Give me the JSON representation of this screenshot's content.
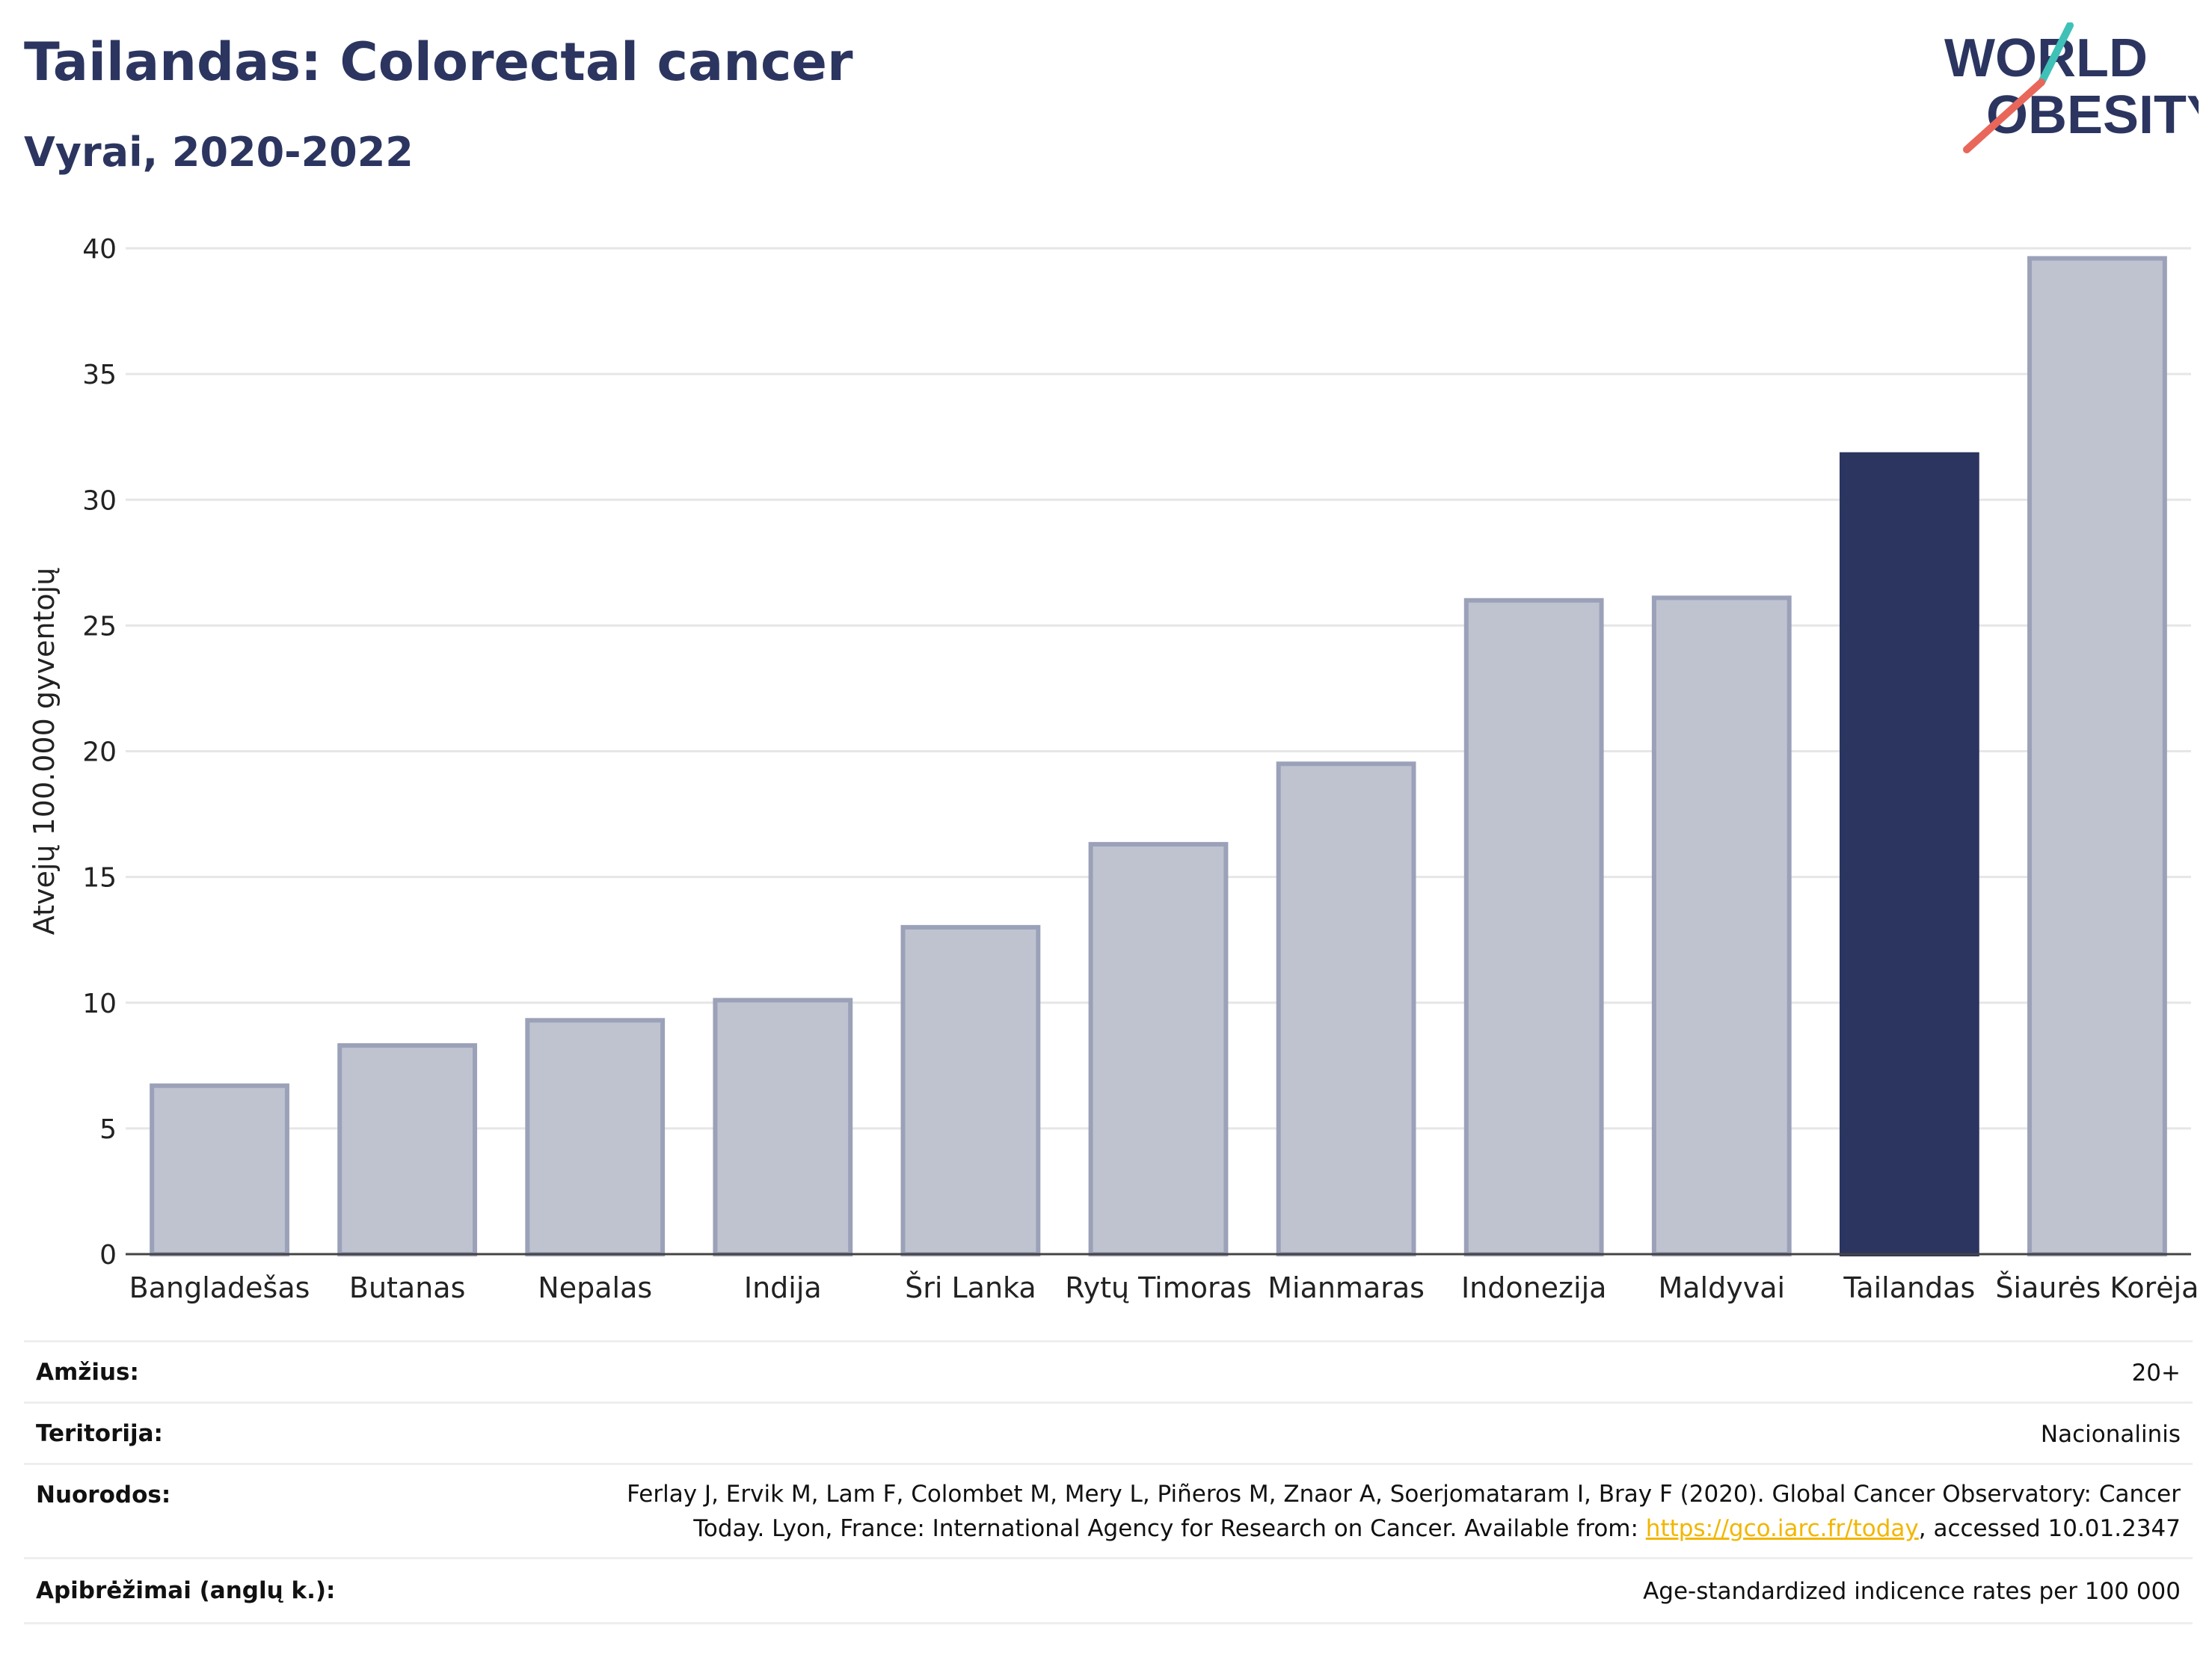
{
  "header": {
    "title": "Tailandas: Colorectal cancer",
    "subtitle": "Vyrai, 2020-2022"
  },
  "logo": {
    "line1": "WORLD",
    "line2": "OBESITY",
    "colors": {
      "text": "#2b3560",
      "teal": "#3fc1b7",
      "coral": "#e8675a"
    }
  },
  "chart_data": {
    "type": "bar",
    "categories": [
      "Bangladešas",
      "Butanas",
      "Nepalas",
      "Indija",
      "Šri Lanka",
      "Rytų Timoras",
      "Mianmaras",
      "Indonezija",
      "Maldyvai",
      "Tailandas",
      "Šiaurės Korėja"
    ],
    "values": [
      6.7,
      8.3,
      9.3,
      10.1,
      13.0,
      16.3,
      19.5,
      26.0,
      26.1,
      31.8,
      39.6
    ],
    "highlight": "Tailandas",
    "ylabel": "Atvejų 100.000 gyventojų",
    "ylim": [
      0,
      40
    ],
    "yticks": [
      0,
      5,
      10,
      15,
      20,
      25,
      30,
      35,
      40
    ],
    "grid": true,
    "colors": {
      "bar": "#bfc3d0",
      "bar_border": "#9ba1b8",
      "highlight": "#2b3560",
      "grid": "#e6e6e6"
    }
  },
  "meta": {
    "age_label": "Amžius:",
    "age_value": "20+",
    "territory_label": "Teritorija:",
    "territory_value": "Nacionalinis",
    "refs_label": "Nuorodos:",
    "refs_line1": "Ferlay J, Ervik M, Lam F, Colombet M, Mery L, Piñeros M, Znaor A, Soerjomataram I, Bray F (2020). Global Cancer Observatory: Cancer",
    "refs_line2_pre": "Today. Lyon, France: International Agency for Research on Cancer. Available from: ",
    "refs_link": "https://gco.iarc.fr/today",
    "refs_line2_post": ", accessed 10.01.2347",
    "defs_label": "Apibrėžimai (anglų k.):",
    "defs_value": "Age-standardized indicence rates per 100 000"
  }
}
